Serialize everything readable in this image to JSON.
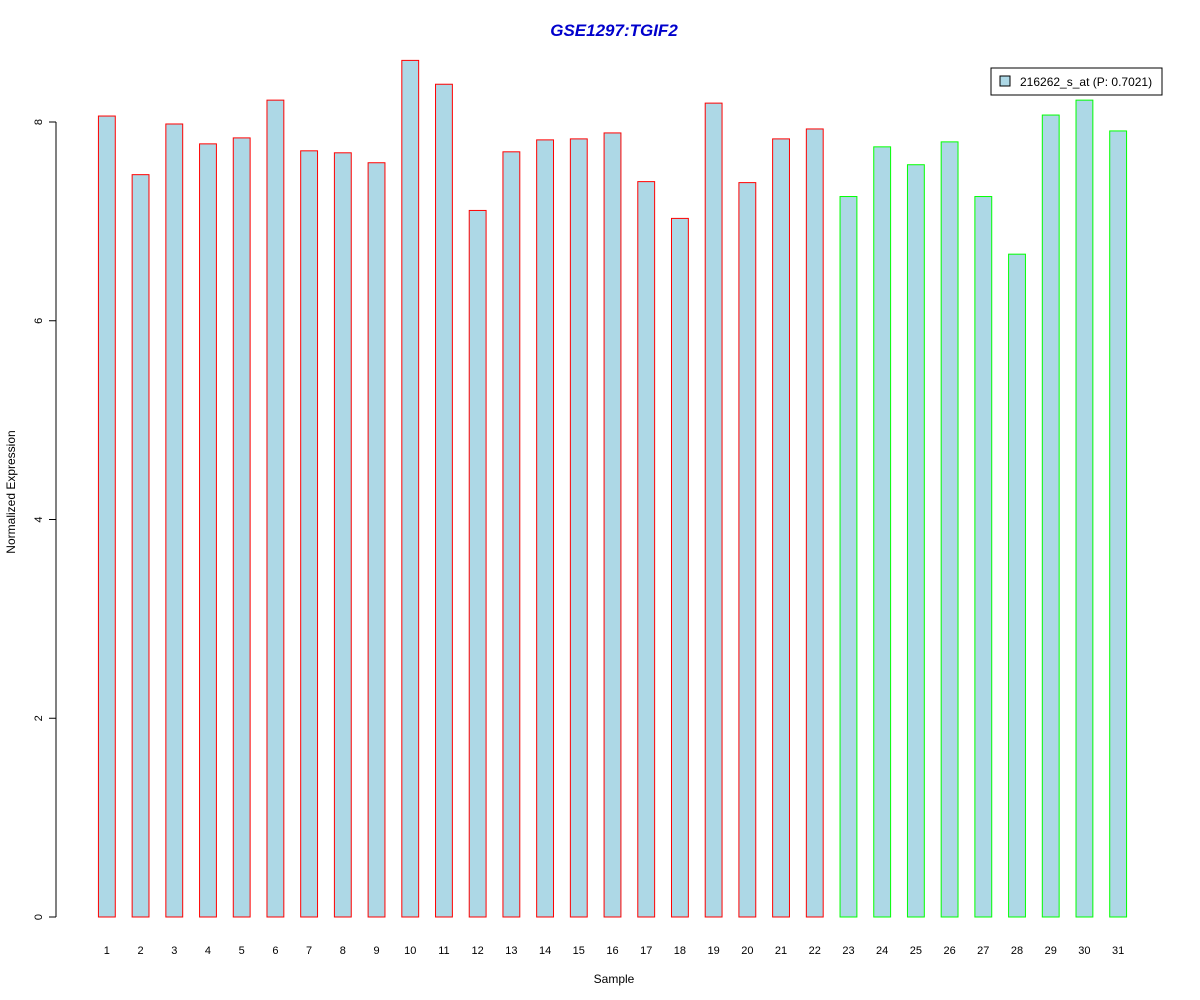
{
  "chart_data": {
    "type": "bar",
    "title": "GSE1297:TGIF2",
    "xlabel": "Sample",
    "ylabel": "Normalized Expression",
    "ylim": [
      0,
      8.6
    ],
    "y_ticks": [
      0,
      2,
      4,
      6,
      8
    ],
    "grid": false,
    "legend_position": "top-right",
    "legend": {
      "label": "216262_s_at (P: 0.7021)",
      "fill": "#add8e6"
    },
    "categories": [
      "1",
      "2",
      "3",
      "4",
      "5",
      "6",
      "7",
      "8",
      "9",
      "10",
      "11",
      "12",
      "13",
      "14",
      "15",
      "16",
      "17",
      "18",
      "19",
      "20",
      "21",
      "22",
      "23",
      "24",
      "25",
      "26",
      "27",
      "28",
      "29",
      "30",
      "31"
    ],
    "values": [
      8.06,
      7.47,
      7.98,
      7.78,
      7.84,
      8.22,
      7.71,
      7.69,
      7.59,
      8.62,
      8.38,
      7.11,
      7.7,
      7.82,
      7.83,
      7.89,
      7.4,
      7.03,
      8.19,
      7.39,
      7.83,
      7.93,
      7.25,
      7.75,
      7.57,
      7.8,
      7.25,
      6.67,
      8.07,
      8.22,
      7.91
    ],
    "groups": [
      "red",
      "red",
      "red",
      "red",
      "red",
      "red",
      "red",
      "red",
      "red",
      "red",
      "red",
      "red",
      "red",
      "red",
      "red",
      "red",
      "red",
      "red",
      "red",
      "red",
      "red",
      "red",
      "green",
      "green",
      "green",
      "green",
      "green",
      "green",
      "green",
      "green",
      "green"
    ],
    "colors": {
      "bar_fill": "#add8e6",
      "border_red": "#ff0000",
      "border_green": "#00ff00",
      "title": "#0000cc",
      "axis": "#000000"
    }
  }
}
